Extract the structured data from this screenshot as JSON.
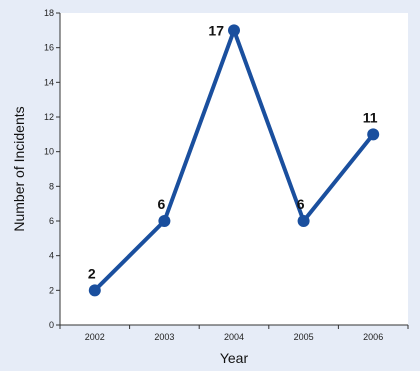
{
  "chart_data": {
    "type": "line",
    "xlabel": "Year",
    "ylabel": "Number of Incidents",
    "categories": [
      "2002",
      "2003",
      "2004",
      "2005",
      "2006"
    ],
    "series": [
      {
        "values": [
          2,
          6,
          17,
          6,
          11
        ]
      }
    ],
    "data_labels": [
      "2",
      "6",
      "17",
      "6",
      "11"
    ],
    "ylim": [
      0,
      18
    ],
    "yticks": [
      "0",
      "2",
      "4",
      "6",
      "8",
      "10",
      "12",
      "14",
      "16",
      "18"
    ],
    "grid": false,
    "legend": "none",
    "colors": {
      "line": "#1a4f9e",
      "marker": "#1a4f9e",
      "plot_background": "#ffffff",
      "page_background": "#e6ecf7"
    }
  }
}
